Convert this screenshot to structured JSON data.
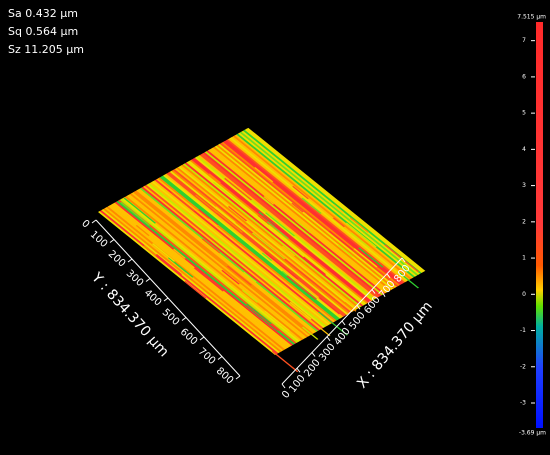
{
  "stats": [
    "Sa 0.432 μm",
    "Sq 0.564 μm",
    "Sz 11.205 μm"
  ],
  "y_axis": {
    "label": "Y : 834.370 μm",
    "ticks": [
      0,
      100,
      200,
      300,
      400,
      500,
      600,
      700,
      800
    ]
  },
  "x_axis": {
    "label": "X : 834.370 μm",
    "ticks": [
      0,
      100,
      200,
      300,
      400,
      500,
      600,
      700,
      800
    ]
  },
  "colorbar": {
    "lim": [
      -3.69,
      7.515
    ],
    "lim_labels": [
      "-3.69 μm",
      "7.515 μm"
    ],
    "ticks": [
      -3,
      -2,
      -1,
      0,
      1,
      2,
      3,
      4,
      5,
      6,
      7
    ]
  }
}
